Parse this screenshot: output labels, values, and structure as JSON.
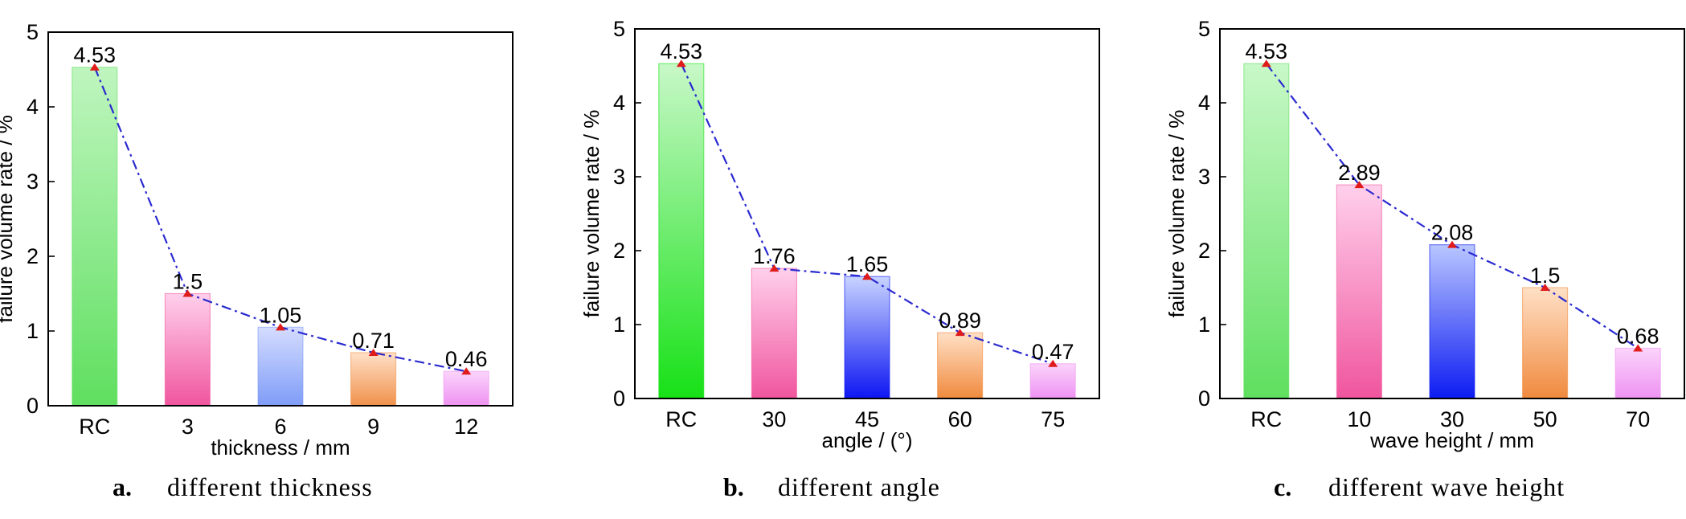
{
  "chart_data": [
    {
      "type": "bar",
      "categories": [
        "RC",
        "3",
        "6",
        "9",
        "12"
      ],
      "values": [
        4.53,
        1.5,
        1.05,
        0.71,
        0.46
      ],
      "value_labels": [
        "4.53",
        "1.5",
        "1.05",
        "0.71",
        "0.46"
      ],
      "xlabel": "thickness / mm",
      "ylabel": "failure volume rate / %",
      "ylim": [
        0,
        5
      ],
      "yticks": [
        "0",
        "1",
        "2",
        "3",
        "4",
        "5"
      ],
      "caption_letter": "a.",
      "caption_text": "different thickness",
      "bar_colors": [
        [
          "#bff5bf",
          "#5fdf5f"
        ],
        [
          "#ffd0ec",
          "#f0559e"
        ],
        [
          "#d4dcff",
          "#7f9cf7"
        ],
        [
          "#ffe0c6",
          "#f0914c"
        ],
        [
          "#fbd4fb",
          "#ee92f2"
        ]
      ],
      "line_color": "#2a2ad0",
      "marker_color": "#e01b1b"
    },
    {
      "type": "bar",
      "categories": [
        "RC",
        "30",
        "45",
        "60",
        "75"
      ],
      "values": [
        4.53,
        1.76,
        1.65,
        0.89,
        0.47
      ],
      "value_labels": [
        "4.53",
        "1.76",
        "1.65",
        "0.89",
        "0.47"
      ],
      "xlabel": "angle / (°)",
      "ylabel": "failure volume rate / %",
      "ylim": [
        0,
        5
      ],
      "yticks": [
        "0",
        "1",
        "2",
        "3",
        "4",
        "5"
      ],
      "caption_letter": "b.",
      "caption_text": "different angle",
      "bar_colors": [
        [
          "#c8f8c8",
          "#17e117"
        ],
        [
          "#ffd0ec",
          "#f0559e"
        ],
        [
          "#c8d4ff",
          "#0d16f2"
        ],
        [
          "#ffe0c6",
          "#f08a3e"
        ],
        [
          "#fbd4fb",
          "#ee92f2"
        ]
      ],
      "line_color": "#2a2ad0",
      "marker_color": "#e01b1b"
    },
    {
      "type": "bar",
      "categories": [
        "RC",
        "10",
        "30",
        "50",
        "70"
      ],
      "values": [
        4.53,
        2.89,
        2.08,
        1.5,
        0.68
      ],
      "value_labels": [
        "4.53",
        "2.89",
        "2.08",
        "1.5",
        "0.68"
      ],
      "xlabel": "wave height / mm",
      "ylabel": "failure volume rate / %",
      "ylim": [
        0,
        5
      ],
      "yticks": [
        "0",
        "1",
        "2",
        "3",
        "4",
        "5"
      ],
      "caption_letter": "c.",
      "caption_text": "different wave height",
      "bar_colors": [
        [
          "#c8f8c8",
          "#5fdf5f"
        ],
        [
          "#ffd0ec",
          "#f0559e"
        ],
        [
          "#b9c6ff",
          "#0d1cf2"
        ],
        [
          "#ffe0c6",
          "#f08a3e"
        ],
        [
          "#fbd4fb",
          "#ee92f2"
        ]
      ],
      "line_color": "#2a2ad0",
      "marker_color": "#e01b1b"
    }
  ]
}
